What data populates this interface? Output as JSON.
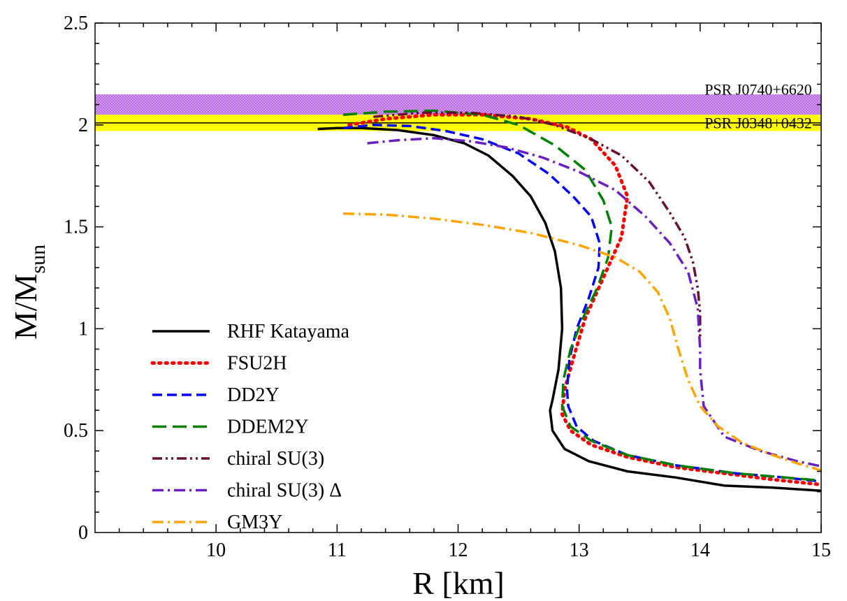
{
  "chart_data": {
    "type": "line",
    "title": "",
    "xlabel": "R [km]",
    "ylabel_main": "M/M",
    "ylabel_sub": "sun",
    "xlim": [
      9,
      15
    ],
    "ylim": [
      0,
      2.5
    ],
    "x_ticks": [
      10,
      11,
      12,
      13,
      14,
      15
    ],
    "y_ticks": [
      0,
      0.5,
      1,
      1.5,
      2,
      2.5
    ],
    "x_tick_labels": [
      "10",
      "11",
      "12",
      "13",
      "14",
      "15"
    ],
    "y_tick_labels": [
      "0",
      "0.5",
      "1",
      "1.5",
      "2",
      "2.5"
    ],
    "grid": false,
    "legend_position": "lower-left",
    "bands": [
      {
        "name": "PSR J0740+6620",
        "y_range": [
          2.05,
          2.15
        ],
        "color": "#b35ee0",
        "pattern": "crosshatch"
      },
      {
        "name": "PSR J0348+0432",
        "y_range": [
          1.97,
          2.05
        ],
        "color": "#ffff00",
        "center": 2.01
      }
    ],
    "series": [
      {
        "name": "RHF Katayama",
        "color": "#000000",
        "dash": "solid",
        "width": 3.5,
        "points": [
          [
            10.84,
            1.98
          ],
          [
            11.0,
            1.985
          ],
          [
            11.2,
            1.985
          ],
          [
            11.5,
            1.975
          ],
          [
            11.8,
            1.95
          ],
          [
            12.05,
            1.91
          ],
          [
            12.25,
            1.85
          ],
          [
            12.45,
            1.75
          ],
          [
            12.6,
            1.65
          ],
          [
            12.72,
            1.52
          ],
          [
            12.8,
            1.38
          ],
          [
            12.85,
            1.2
          ],
          [
            12.86,
            1.0
          ],
          [
            12.83,
            0.8
          ],
          [
            12.78,
            0.65
          ],
          [
            12.76,
            0.6
          ],
          [
            12.78,
            0.5
          ],
          [
            12.88,
            0.41
          ],
          [
            13.08,
            0.35
          ],
          [
            13.4,
            0.3
          ],
          [
            13.8,
            0.27
          ],
          [
            14.2,
            0.23
          ],
          [
            14.6,
            0.22
          ],
          [
            15.0,
            0.205
          ]
        ]
      },
      {
        "name": "FSU2H",
        "color": "#ff0000",
        "dash": "dotted",
        "width": 5,
        "points": [
          [
            11.1,
            2.0
          ],
          [
            11.4,
            2.03
          ],
          [
            11.8,
            2.05
          ],
          [
            12.2,
            2.05
          ],
          [
            12.6,
            2.03
          ],
          [
            12.9,
            1.99
          ],
          [
            13.1,
            1.93
          ],
          [
            13.3,
            1.8
          ],
          [
            13.4,
            1.65
          ],
          [
            13.35,
            1.45
          ],
          [
            13.2,
            1.25
          ],
          [
            13.05,
            1.05
          ],
          [
            12.95,
            0.85
          ],
          [
            12.88,
            0.7
          ],
          [
            12.86,
            0.58
          ],
          [
            12.93,
            0.5
          ],
          [
            13.1,
            0.43
          ],
          [
            13.4,
            0.37
          ],
          [
            13.8,
            0.32
          ],
          [
            14.2,
            0.29
          ],
          [
            14.6,
            0.26
          ],
          [
            15.0,
            0.235
          ]
        ]
      },
      {
        "name": "DD2Y",
        "color": "#0000ff",
        "dash": "dashed",
        "width": 3.5,
        "points": [
          [
            11.05,
            1.985
          ],
          [
            11.3,
            2.0
          ],
          [
            11.6,
            1.995
          ],
          [
            11.9,
            1.97
          ],
          [
            12.2,
            1.93
          ],
          [
            12.5,
            1.86
          ],
          [
            12.75,
            1.76
          ],
          [
            12.95,
            1.65
          ],
          [
            13.1,
            1.55
          ],
          [
            13.17,
            1.42
          ],
          [
            13.16,
            1.3
          ],
          [
            13.08,
            1.15
          ],
          [
            12.98,
            1.0
          ],
          [
            12.92,
            0.85
          ],
          [
            12.9,
            0.7
          ],
          [
            12.91,
            0.62
          ],
          [
            12.98,
            0.52
          ],
          [
            13.12,
            0.45
          ],
          [
            13.4,
            0.38
          ],
          [
            13.8,
            0.33
          ],
          [
            14.3,
            0.29
          ],
          [
            14.7,
            0.27
          ],
          [
            15.0,
            0.25
          ]
        ]
      },
      {
        "name": "DDEM2Y",
        "color": "#008000",
        "dash": "longdash",
        "width": 3.5,
        "points": [
          [
            11.05,
            2.05
          ],
          [
            11.4,
            2.065
          ],
          [
            11.8,
            2.07
          ],
          [
            12.2,
            2.05
          ],
          [
            12.5,
            2.0
          ],
          [
            12.8,
            1.9
          ],
          [
            13.05,
            1.78
          ],
          [
            13.2,
            1.63
          ],
          [
            13.27,
            1.5
          ],
          [
            13.24,
            1.35
          ],
          [
            13.15,
            1.2
          ],
          [
            13.03,
            1.05
          ],
          [
            12.93,
            0.9
          ],
          [
            12.87,
            0.75
          ],
          [
            12.86,
            0.62
          ],
          [
            12.93,
            0.52
          ],
          [
            13.1,
            0.45
          ],
          [
            13.4,
            0.38
          ],
          [
            13.8,
            0.33
          ],
          [
            14.3,
            0.29
          ],
          [
            14.7,
            0.27
          ],
          [
            15.0,
            0.255
          ]
        ]
      },
      {
        "name": "chiral SU(3)",
        "color": "#661133",
        "dash": "dashdotdot",
        "width": 3.5,
        "points": [
          [
            11.3,
            2.04
          ],
          [
            11.7,
            2.06
          ],
          [
            12.1,
            2.06
          ],
          [
            12.5,
            2.04
          ],
          [
            12.8,
            2.0
          ],
          [
            13.1,
            1.93
          ],
          [
            13.35,
            1.85
          ],
          [
            13.58,
            1.72
          ],
          [
            13.75,
            1.57
          ],
          [
            13.87,
            1.45
          ],
          [
            13.94,
            1.33
          ],
          [
            13.98,
            1.2
          ],
          [
            14.0,
            1.08
          ],
          [
            14.0,
            0.95
          ]
        ]
      },
      {
        "name": "chiral SU(3) Δ",
        "color": "#6a1fc0",
        "dash": "dashdot",
        "width": 3.5,
        "points": [
          [
            11.25,
            1.91
          ],
          [
            11.5,
            1.925
          ],
          [
            11.8,
            1.935
          ],
          [
            12.1,
            1.92
          ],
          [
            12.4,
            1.89
          ],
          [
            12.7,
            1.84
          ],
          [
            13.0,
            1.77
          ],
          [
            13.3,
            1.68
          ],
          [
            13.55,
            1.55
          ],
          [
            13.75,
            1.42
          ],
          [
            13.9,
            1.28
          ],
          [
            13.98,
            1.1
          ],
          [
            14.0,
            0.9
          ],
          [
            14.0,
            0.8
          ],
          [
            14.03,
            0.62
          ],
          [
            14.2,
            0.47
          ],
          [
            14.5,
            0.4
          ],
          [
            14.8,
            0.35
          ],
          [
            15.0,
            0.325
          ]
        ]
      },
      {
        "name": "GM3Y",
        "color": "#ffa500",
        "dash": "dashdot",
        "width": 3.5,
        "points": [
          [
            11.05,
            1.565
          ],
          [
            11.4,
            1.56
          ],
          [
            11.8,
            1.54
          ],
          [
            12.2,
            1.51
          ],
          [
            12.6,
            1.47
          ],
          [
            13.0,
            1.41
          ],
          [
            13.3,
            1.35
          ],
          [
            13.5,
            1.28
          ],
          [
            13.65,
            1.18
          ],
          [
            13.75,
            1.05
          ],
          [
            13.82,
            0.9
          ],
          [
            13.9,
            0.75
          ],
          [
            14.0,
            0.62
          ],
          [
            14.15,
            0.52
          ],
          [
            14.35,
            0.44
          ],
          [
            14.6,
            0.38
          ],
          [
            14.8,
            0.34
          ],
          [
            15.0,
            0.305
          ]
        ]
      }
    ]
  }
}
